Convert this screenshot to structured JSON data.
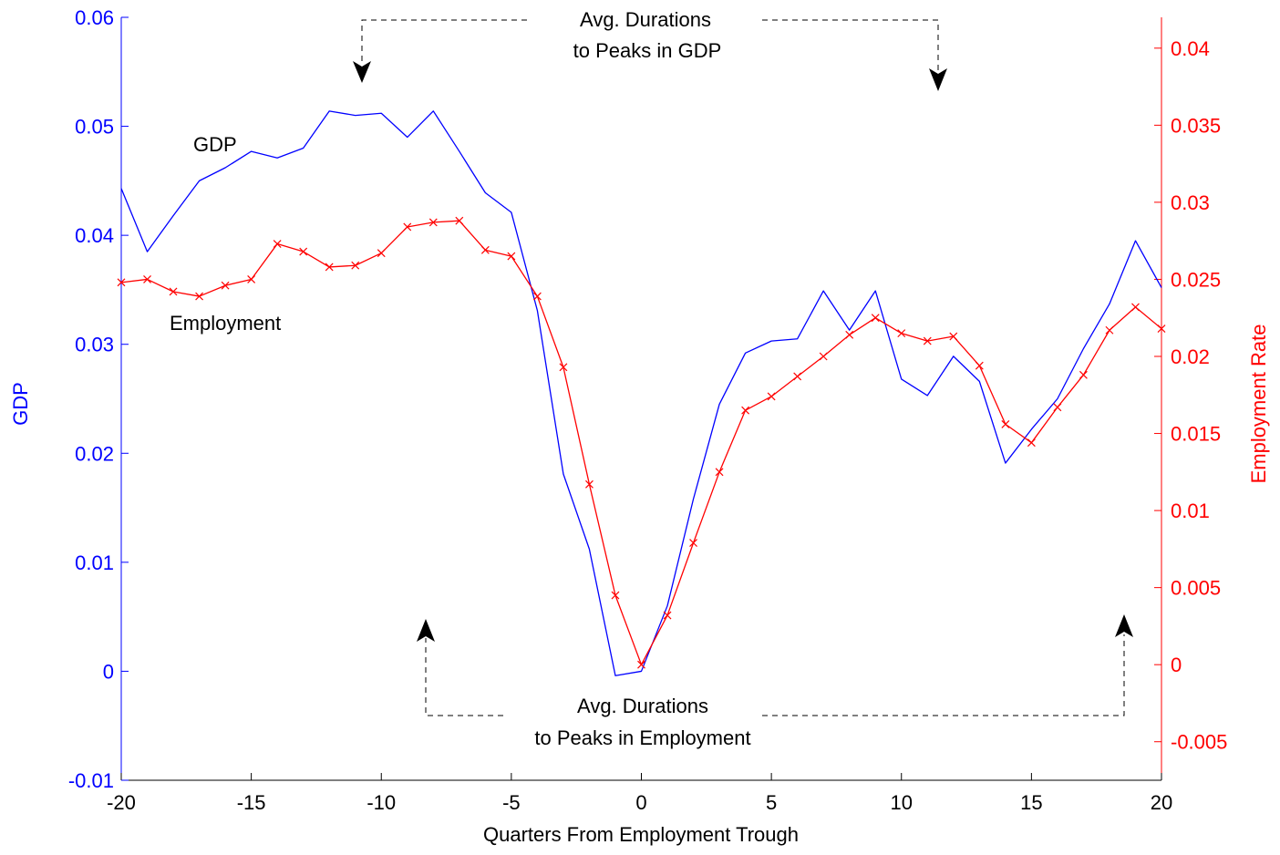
{
  "chart_data": {
    "type": "line",
    "xlabel": "Quarters From Employment Trough",
    "ylabel_left": "GDP",
    "ylabel_right": "Employment Rate",
    "xlim": [
      -20,
      20
    ],
    "ylim_left": [
      -0.01,
      0.06
    ],
    "ylim_right": [
      -0.0075,
      0.042
    ],
    "x_ticks": [
      "-20",
      "-15",
      "-10",
      "-5",
      "0",
      "5",
      "10",
      "15",
      "20"
    ],
    "y_ticks_left": [
      "-0.01",
      "0",
      "0.01",
      "0.02",
      "0.03",
      "0.04",
      "0.05",
      "0.06"
    ],
    "y_ticks_right": [
      "-0.005",
      "0",
      "0.005",
      "0.01",
      "0.015",
      "0.02",
      "0.025",
      "0.03",
      "0.035",
      "0.04"
    ],
    "grid": false,
    "colors": {
      "left_axis": "#0000ff",
      "right_axis": "#ff0000",
      "gdp": "#0000ff",
      "employment": "#ff0000",
      "annotation": "#000000"
    },
    "x": [
      -20,
      -19,
      -18,
      -17,
      -16,
      -15,
      -14,
      -13,
      -12,
      -11,
      -10,
      -9,
      -8,
      -7,
      -6,
      -5,
      -4,
      -3,
      -2,
      -1,
      0,
      1,
      2,
      3,
      4,
      5,
      6,
      7,
      8,
      9,
      10,
      11,
      12,
      13,
      14,
      15,
      16,
      17,
      18,
      19,
      20
    ],
    "series": [
      {
        "name": "GDP",
        "axis": "left",
        "marker": "none",
        "values": [
          0.0443,
          0.0385,
          0.0418,
          0.045,
          0.0462,
          0.0477,
          0.0471,
          0.048,
          0.0514,
          0.051,
          0.0512,
          0.049,
          0.0514,
          0.0477,
          0.0439,
          0.0421,
          0.0331,
          0.0181,
          0.0112,
          -0.0004,
          0.0,
          0.006,
          0.0158,
          0.0245,
          0.0292,
          0.0303,
          0.0305,
          0.0349,
          0.0313,
          0.0349,
          0.0268,
          0.0253,
          0.0289,
          0.0266,
          0.0191,
          0.0222,
          0.025,
          0.0296,
          0.0337,
          0.0395,
          0.0352
        ]
      },
      {
        "name": "Employment",
        "axis": "right",
        "marker": "x",
        "values": [
          0.0248,
          0.025,
          0.0242,
          0.0239,
          0.0246,
          0.025,
          0.0273,
          0.0268,
          0.0258,
          0.0259,
          0.0267,
          0.0284,
          0.0287,
          0.0288,
          0.0269,
          0.0265,
          0.0239,
          0.0193,
          0.0117,
          0.0045,
          0.0,
          0.0032,
          0.0079,
          0.0125,
          0.0165,
          0.0174,
          0.0187,
          0.02,
          0.0214,
          0.0225,
          0.0215,
          0.021,
          0.0213,
          0.0194,
          0.0156,
          0.0144,
          0.0167,
          0.0188,
          0.0217,
          0.0232,
          0.0218
        ]
      }
    ],
    "annotations": {
      "gdp_series_label": "GDP",
      "employment_series_label": "Employment",
      "top_line1": "Avg. Durations",
      "top_line2": "to Peaks in GDP",
      "bottom_line1": "Avg. Durations",
      "bottom_line2": "to Peaks in Employment"
    }
  }
}
